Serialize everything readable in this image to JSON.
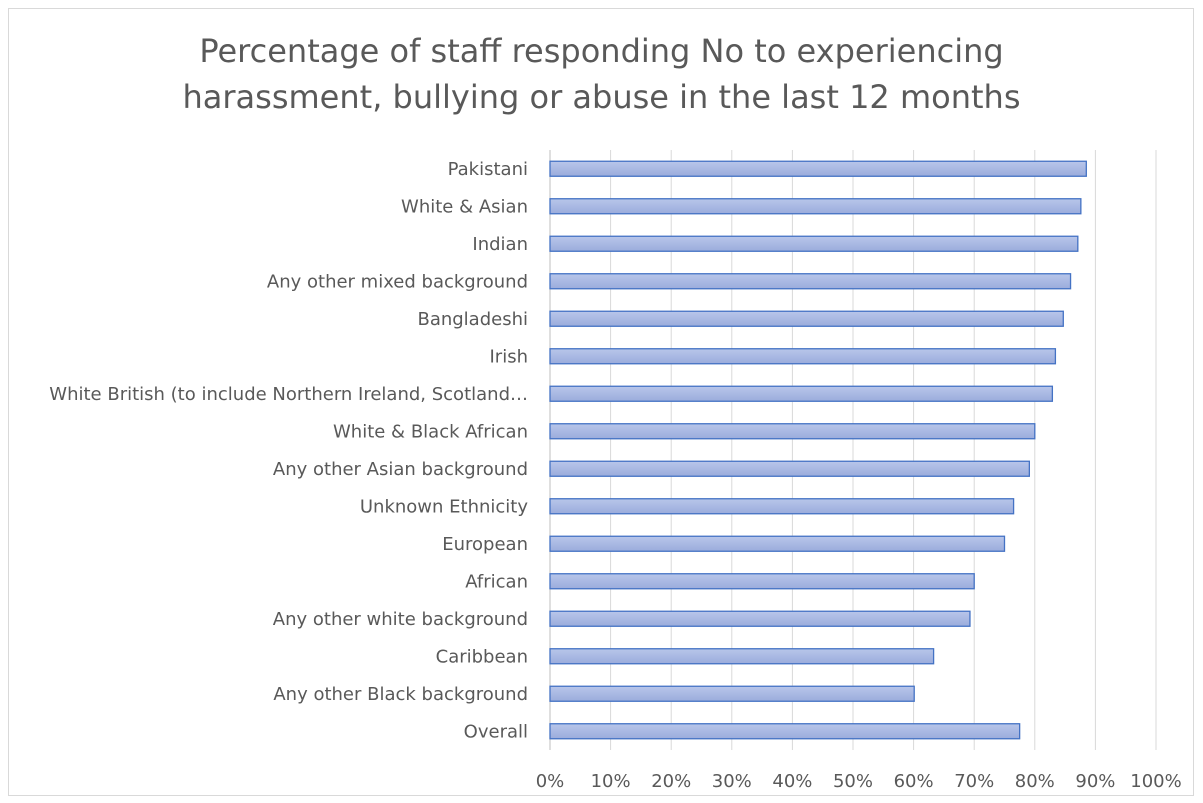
{
  "chart_data": {
    "type": "bar",
    "orientation": "horizontal",
    "title_lines": [
      "Percentage of staff responding No to experiencing",
      "harassment, bullying or abuse in the last 12 months"
    ],
    "categories": [
      "Pakistani",
      "White & Asian",
      "Indian",
      "Any other mixed background",
      "Bangladeshi",
      "Irish",
      "White British (to include Northern Ireland, Scotland…",
      "White & Black African",
      "Any other Asian background",
      "Unknown Ethnicity",
      "European",
      "African",
      "Any other white background",
      "Caribbean",
      "Any other Black background",
      "Overall"
    ],
    "values": [
      88.5,
      87.6,
      87.1,
      85.9,
      84.7,
      83.4,
      82.9,
      80.0,
      79.1,
      76.5,
      75.0,
      70.0,
      69.3,
      63.3,
      60.1,
      77.5
    ],
    "xlim": [
      0,
      100
    ],
    "x_ticks": [
      "0%",
      "10%",
      "20%",
      "30%",
      "40%",
      "50%",
      "60%",
      "70%",
      "80%",
      "90%",
      "100%"
    ],
    "x_tick_values": [
      0,
      10,
      20,
      30,
      40,
      50,
      60,
      70,
      80,
      90,
      100
    ],
    "grid": "vertical",
    "legend": "none",
    "colors": {
      "bar_fill": "#9bacdc",
      "bar_fill_light": "#b8c6ea",
      "bar_stroke": "#4472c4",
      "gridline": "#d9d9d9",
      "axis": "#bfbfbf",
      "text": "#595959"
    }
  }
}
